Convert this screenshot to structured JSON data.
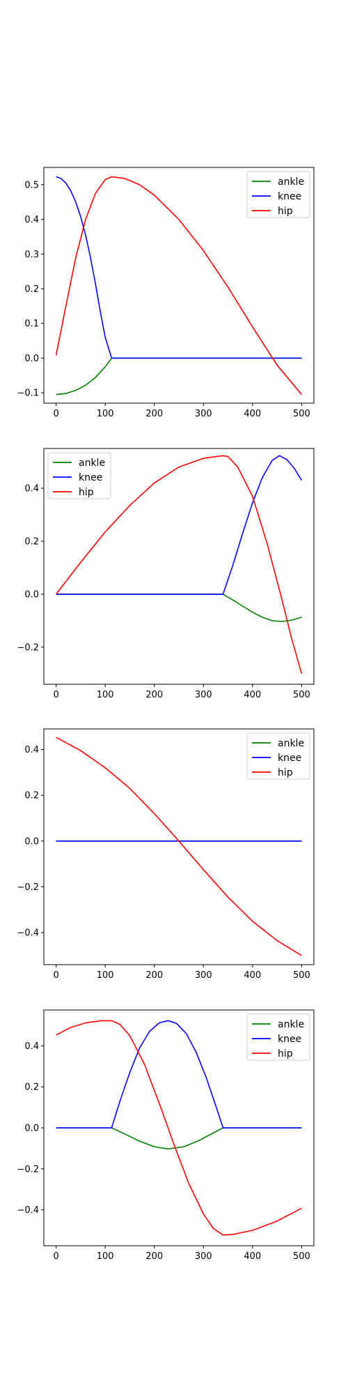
{
  "chart_data": [
    {
      "type": "line",
      "xlim": [
        -25,
        525
      ],
      "ylim": [
        -0.13,
        0.55
      ],
      "xticks": [
        0,
        100,
        200,
        300,
        400,
        500
      ],
      "yticks": [
        -0.1,
        0.0,
        0.1,
        0.2,
        0.3,
        0.4,
        0.5
      ],
      "legend_position": "top-right",
      "grid": false,
      "series": [
        {
          "name": "ankle",
          "color": "#008000",
          "x": [
            0,
            20,
            40,
            60,
            80,
            100,
            113,
            200,
            300,
            400,
            500
          ],
          "y": [
            -0.105,
            -0.102,
            -0.093,
            -0.078,
            -0.056,
            -0.025,
            0.0,
            0.0,
            0.0,
            0.0,
            0.0
          ]
        },
        {
          "name": "knee",
          "color": "#0000ff",
          "x": [
            0,
            10,
            20,
            30,
            40,
            50,
            60,
            70,
            80,
            90,
            100,
            113,
            200,
            300,
            400,
            500
          ],
          "y": [
            0.523,
            0.518,
            0.505,
            0.482,
            0.45,
            0.408,
            0.355,
            0.29,
            0.215,
            0.135,
            0.06,
            0.0,
            0.0,
            0.0,
            0.0,
            0.0
          ]
        },
        {
          "name": "hip",
          "color": "#ff0000",
          "x": [
            0,
            20,
            40,
            60,
            80,
            100,
            113,
            140,
            170,
            200,
            250,
            300,
            350,
            400,
            450,
            500
          ],
          "y": [
            0.008,
            0.15,
            0.29,
            0.4,
            0.475,
            0.515,
            0.523,
            0.518,
            0.5,
            0.47,
            0.4,
            0.31,
            0.205,
            0.09,
            -0.02,
            -0.105
          ]
        }
      ]
    },
    {
      "type": "line",
      "xlim": [
        -25,
        525
      ],
      "ylim": [
        -0.34,
        0.55
      ],
      "xticks": [
        0,
        100,
        200,
        300,
        400,
        500
      ],
      "yticks": [
        -0.2,
        0.0,
        0.2,
        0.4
      ],
      "legend_position": "top-left",
      "grid": false,
      "series": [
        {
          "name": "ankle",
          "color": "#008000",
          "x": [
            0,
            100,
            200,
            300,
            340,
            360,
            380,
            400,
            420,
            440,
            460,
            480,
            500
          ],
          "y": [
            0.0,
            0.0,
            0.0,
            0.0,
            0.0,
            -0.022,
            -0.045,
            -0.068,
            -0.087,
            -0.1,
            -0.103,
            -0.098,
            -0.087
          ]
        },
        {
          "name": "knee",
          "color": "#0000ff",
          "x": [
            0,
            100,
            200,
            300,
            340,
            360,
            380,
            400,
            420,
            440,
            455,
            470,
            485,
            500
          ],
          "y": [
            0.0,
            0.0,
            0.0,
            0.0,
            0.0,
            0.11,
            0.23,
            0.345,
            0.44,
            0.505,
            0.523,
            0.508,
            0.475,
            0.43
          ]
        },
        {
          "name": "hip",
          "color": "#ff0000",
          "x": [
            0,
            50,
            100,
            150,
            200,
            250,
            300,
            340,
            350,
            370,
            400,
            430,
            460,
            480,
            500
          ],
          "y": [
            0.0,
            0.12,
            0.235,
            0.335,
            0.42,
            0.48,
            0.513,
            0.523,
            0.52,
            0.48,
            0.37,
            0.19,
            -0.02,
            -0.17,
            -0.3
          ]
        }
      ]
    },
    {
      "type": "line",
      "xlim": [
        -25,
        525
      ],
      "ylim": [
        -0.54,
        0.49
      ],
      "xticks": [
        0,
        100,
        200,
        300,
        400,
        500
      ],
      "yticks": [
        -0.4,
        -0.2,
        0.0,
        0.2,
        0.4
      ],
      "legend_position": "top-right",
      "grid": false,
      "series": [
        {
          "name": "ankle",
          "color": "#008000",
          "x": [
            0,
            500
          ],
          "y": [
            0.0,
            0.0
          ]
        },
        {
          "name": "knee",
          "color": "#0000ff",
          "x": [
            0,
            500
          ],
          "y": [
            0.0,
            0.0
          ]
        },
        {
          "name": "hip",
          "color": "#ff0000",
          "x": [
            0,
            50,
            100,
            150,
            200,
            250,
            300,
            350,
            400,
            450,
            500
          ],
          "y": [
            0.453,
            0.395,
            0.32,
            0.23,
            0.12,
            0.0,
            -0.125,
            -0.245,
            -0.35,
            -0.435,
            -0.5
          ]
        }
      ]
    },
    {
      "type": "line",
      "xlim": [
        -25,
        525
      ],
      "ylim": [
        -0.575,
        0.575
      ],
      "xticks": [
        0,
        100,
        200,
        300,
        400,
        500
      ],
      "yticks": [
        -0.4,
        -0.2,
        0.0,
        0.2,
        0.4
      ],
      "legend_position": "top-right",
      "grid": false,
      "series": [
        {
          "name": "ankle",
          "color": "#008000",
          "x": [
            0,
            113,
            140,
            170,
            200,
            228,
            260,
            290,
            320,
            340,
            400,
            500
          ],
          "y": [
            0.0,
            0.0,
            -0.03,
            -0.065,
            -0.092,
            -0.103,
            -0.092,
            -0.063,
            -0.025,
            0.0,
            0.0,
            0.0
          ]
        },
        {
          "name": "knee",
          "color": "#0000ff",
          "x": [
            0,
            113,
            130,
            150,
            170,
            190,
            210,
            228,
            245,
            265,
            285,
            305,
            325,
            340,
            400,
            500
          ],
          "y": [
            0.0,
            0.0,
            0.13,
            0.27,
            0.39,
            0.47,
            0.512,
            0.523,
            0.51,
            0.46,
            0.37,
            0.25,
            0.11,
            0.0,
            0.0,
            0.0
          ]
        },
        {
          "name": "hip",
          "color": "#ff0000",
          "x": [
            0,
            30,
            60,
            90,
            113,
            130,
            150,
            180,
            210,
            240,
            270,
            300,
            320,
            340,
            360,
            400,
            450,
            500
          ],
          "y": [
            0.453,
            0.49,
            0.512,
            0.522,
            0.523,
            0.505,
            0.45,
            0.31,
            0.12,
            -0.08,
            -0.27,
            -0.42,
            -0.49,
            -0.523,
            -0.52,
            -0.5,
            -0.455,
            -0.392
          ]
        }
      ]
    }
  ]
}
